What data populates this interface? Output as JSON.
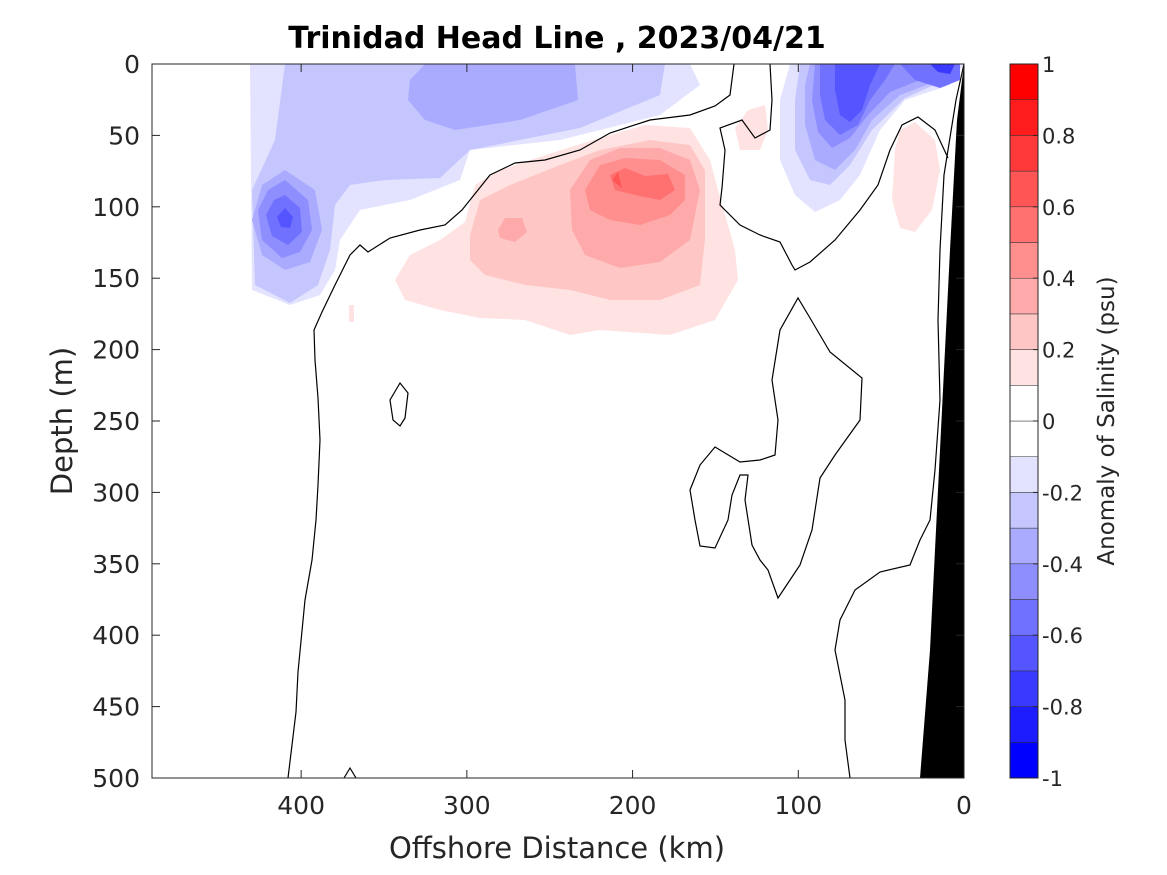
{
  "chart_data": {
    "type": "heatmap",
    "title": "Trinidad Head Line , 2023/04/21",
    "xlabel": "Offshore Distance (km)",
    "ylabel": "Depth (m)",
    "colorbar_label": "Anomaly of Salinity (psu)",
    "x_axis": {
      "range": [
        490,
        0
      ],
      "reversed": true,
      "ticks": [
        400,
        300,
        200,
        100,
        0
      ],
      "tick_labels": [
        "400",
        "300",
        "200",
        "100",
        "0"
      ]
    },
    "y_axis": {
      "range": [
        0,
        500
      ],
      "reversed": true,
      "ticks": [
        0,
        50,
        100,
        150,
        200,
        250,
        300,
        350,
        400,
        450,
        500
      ],
      "tick_labels": [
        "0",
        "50",
        "100",
        "150",
        "200",
        "250",
        "300",
        "350",
        "400",
        "450",
        "500"
      ]
    },
    "colorbar": {
      "range": [
        -1,
        1
      ],
      "levels": [
        -1,
        -0.9,
        -0.8,
        -0.7,
        -0.6,
        -0.5,
        -0.4,
        -0.3,
        -0.2,
        -0.1,
        0,
        0.1,
        0.2,
        0.3,
        0.4,
        0.5,
        0.6,
        0.7,
        0.8,
        0.9,
        1
      ],
      "ticks": [
        1,
        0.8,
        0.6,
        0.4,
        0.2,
        0,
        -0.2,
        -0.4,
        -0.6,
        -0.8,
        -1
      ],
      "tick_labels": [
        "1",
        "0.8",
        "0.6",
        "0.4",
        "0.2",
        "0",
        "-0.2",
        "-0.4",
        "-0.6",
        "-0.8",
        "-1"
      ],
      "colors_low_to_high": [
        "#0000ff",
        "#1c1cff",
        "#3939ff",
        "#5555ff",
        "#7171ff",
        "#8e8eff",
        "#aaaaff",
        "#c6c6ff",
        "#e3e3ff",
        "#ffffff",
        "#ffffff",
        "#ffe3e3",
        "#ffc6c6",
        "#ffaaaa",
        "#ff8e8e",
        "#ff7171",
        "#ff5555",
        "#ff3939",
        "#ff1c1c",
        "#ff0000"
      ]
    },
    "features": [
      {
        "name": "negative anomaly core",
        "sign": "negative",
        "center_km": 405,
        "center_depth_m": 110,
        "anomaly_psu": -0.6
      },
      {
        "name": "negative anomaly near surface",
        "sign": "negative",
        "center_km": 68,
        "center_depth_m": 20,
        "anomaly_psu": -0.7
      },
      {
        "name": "negative anomaly coastal surface",
        "sign": "negative",
        "center_km": 10,
        "center_depth_m": 2,
        "anomaly_psu": -0.9
      },
      {
        "name": "positive anomaly core",
        "sign": "positive",
        "center_km": 212,
        "center_depth_m": 82,
        "anomaly_psu": 0.5
      },
      {
        "name": "positive anomaly offshore",
        "sign": "positive",
        "center_km": 272,
        "center_depth_m": 115,
        "anomaly_psu": 0.3
      },
      {
        "name": "positive anomaly nearshore",
        "sign": "positive",
        "center_km": 30,
        "center_depth_m": 110,
        "anomaly_psu": 0.15
      },
      {
        "name": "positive anomaly small",
        "sign": "positive",
        "center_km": 125,
        "center_depth_m": 40,
        "anomaly_psu": 0.15
      }
    ],
    "grid": false,
    "seafloor_mask_color": "#000000"
  }
}
